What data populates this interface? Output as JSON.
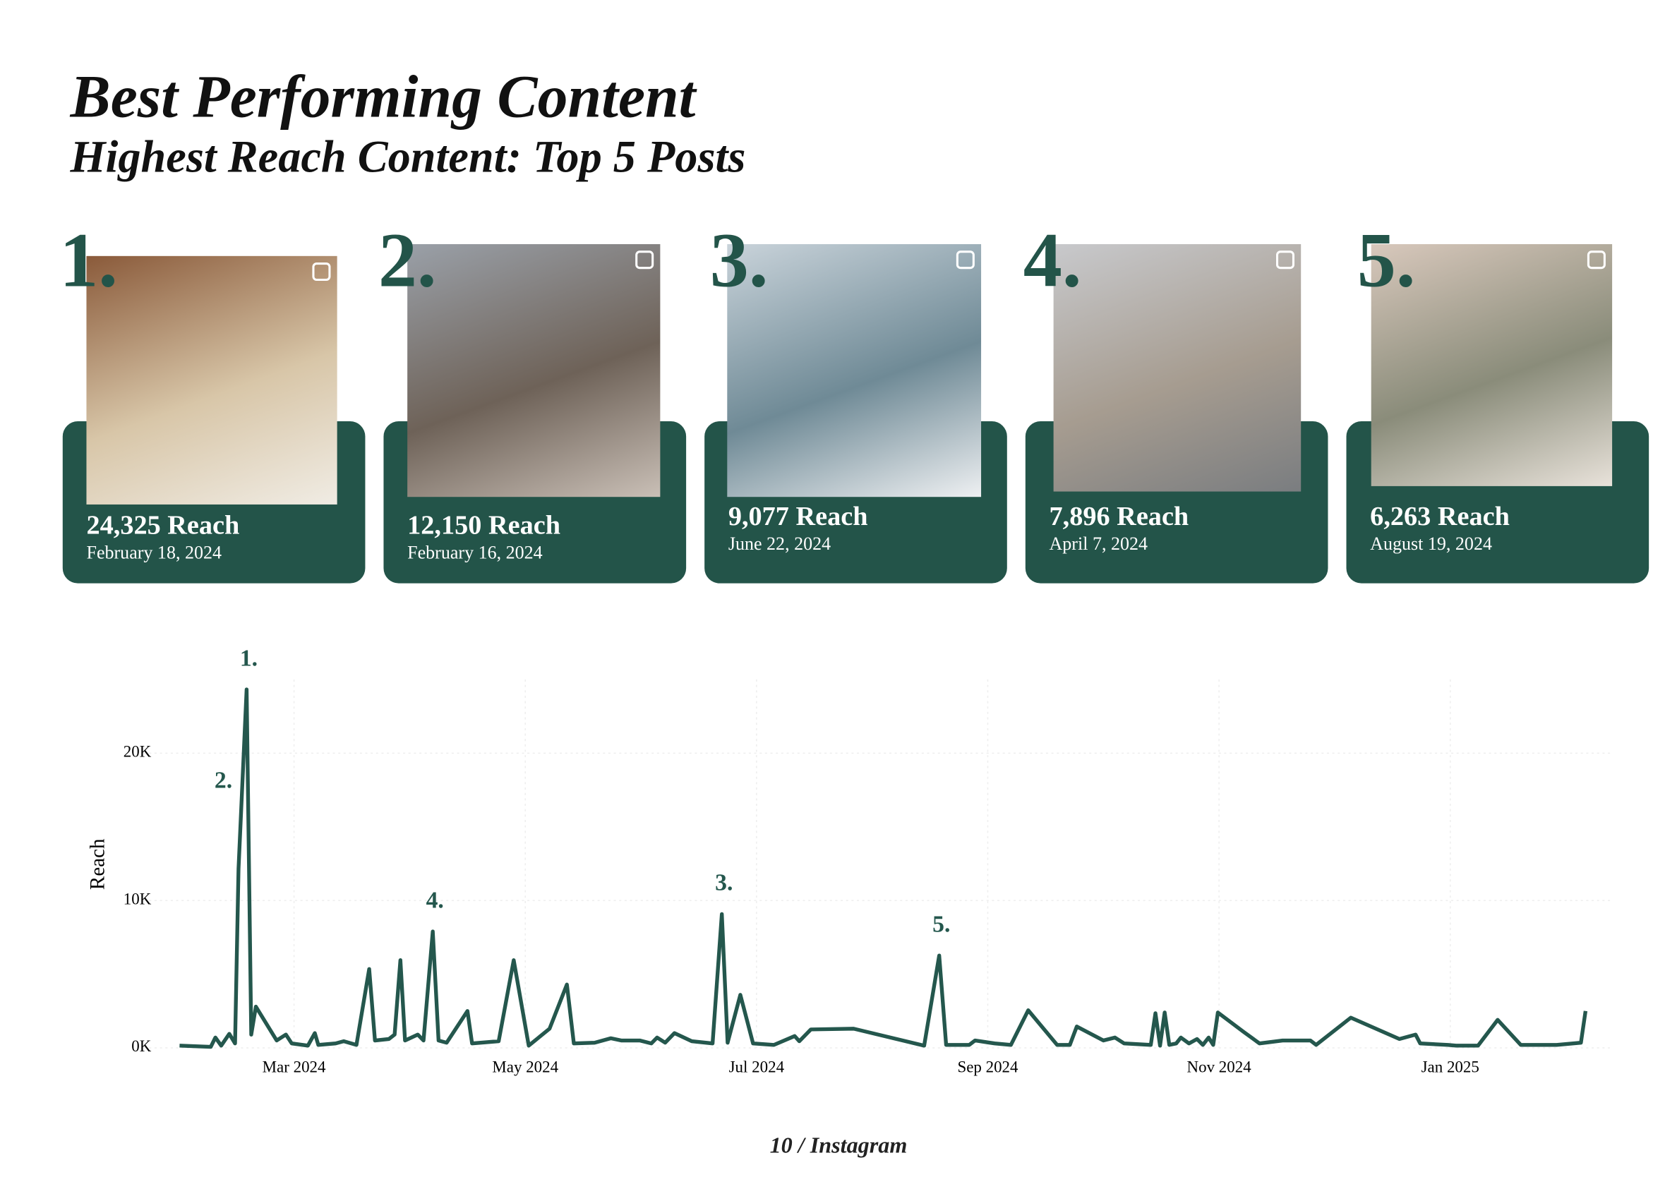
{
  "header": {
    "title": "Best Performing Content",
    "subtitle": "Highest Reach Content: Top 5 Posts"
  },
  "posts": [
    {
      "rank": "1.",
      "reach": "24,325 Reach",
      "date": "February 18, 2024"
    },
    {
      "rank": "2.",
      "reach": "12,150 Reach",
      "date": "February 16, 2024"
    },
    {
      "rank": "3.",
      "reach": "9,077 Reach",
      "date": "June 22, 2024"
    },
    {
      "rank": "4.",
      "reach": "7,896 Reach",
      "date": "April 7, 2024"
    },
    {
      "rank": "5.",
      "reach": "6,263 Reach",
      "date": "August 19, 2024"
    }
  ],
  "chart_data": {
    "type": "line",
    "y_label": "Reach",
    "color": "#24574d",
    "grid": true,
    "xlim": [
      0.7,
      13.4
    ],
    "xticks": [
      {
        "value": 2,
        "label": "Mar 2024"
      },
      {
        "value": 4,
        "label": "May 2024"
      },
      {
        "value": 6,
        "label": "Jul 2024"
      },
      {
        "value": 8,
        "label": "Sep 2024"
      },
      {
        "value": 10,
        "label": "Nov 2024"
      },
      {
        "value": 12,
        "label": "Jan 2025"
      }
    ],
    "ylim": [
      0,
      25000
    ],
    "yticks": [
      {
        "value": 0,
        "label": "0K"
      },
      {
        "value": 10000,
        "label": "10K"
      },
      {
        "value": 20000,
        "label": "20K"
      }
    ],
    "x": [
      1.01,
      1.28,
      1.32,
      1.37,
      1.44,
      1.49,
      1.52,
      1.59,
      1.63,
      1.67,
      1.85,
      1.93,
      1.98,
      2.12,
      2.18,
      2.21,
      2.36,
      2.43,
      2.54,
      2.65,
      2.7,
      2.82,
      2.87,
      2.92,
      2.96,
      3.07,
      3.12,
      3.2,
      3.25,
      3.32,
      3.5,
      3.54,
      3.77,
      3.9,
      4.03,
      4.21,
      4.36,
      4.42,
      4.6,
      4.74,
      4.83,
      4.99,
      5.09,
      5.14,
      5.21,
      5.29,
      5.44,
      5.62,
      5.7,
      5.75,
      5.86,
      5.97,
      6.15,
      6.33,
      6.37,
      6.47,
      6.84,
      7.45,
      7.58,
      7.64,
      7.84,
      7.89,
      8.06,
      8.2,
      8.35,
      8.6,
      8.71,
      8.77,
      9.0,
      9.1,
      9.18,
      9.41,
      9.45,
      9.49,
      9.53,
      9.57,
      9.63,
      9.67,
      9.74,
      9.81,
      9.86,
      9.91,
      9.95,
      9.99,
      10.21,
      10.35,
      10.55,
      10.79,
      10.84,
      11.14,
      11.56,
      11.7,
      11.74,
      11.98,
      12.05,
      12.24,
      12.41,
      12.61,
      12.92,
      13.13,
      13.17
    ],
    "values": [
      150,
      70,
      700,
      150,
      950,
      300,
      12150,
      24325,
      900,
      2800,
      500,
      900,
      300,
      150,
      1000,
      200,
      300,
      450,
      200,
      5350,
      500,
      600,
      900,
      5950,
      500,
      900,
      500,
      7896,
      500,
      350,
      2500,
      300,
      450,
      5950,
      150,
      1300,
      4300,
      300,
      350,
      650,
      500,
      500,
      300,
      700,
      350,
      1000,
      450,
      300,
      9077,
      350,
      3600,
      300,
      200,
      800,
      450,
      1250,
      1300,
      150,
      6263,
      200,
      200,
      500,
      300,
      200,
      2550,
      200,
      200,
      1450,
      500,
      700,
      300,
      200,
      2350,
      150,
      2400,
      200,
      300,
      700,
      300,
      600,
      200,
      700,
      200,
      2400,
      1100,
      300,
      500,
      500,
      200,
      2050,
      600,
      900,
      300,
      200,
      150,
      150,
      1900,
      200,
      200,
      350,
      2500
    ],
    "annotations": [
      {
        "text": "1.",
        "x": 1.59,
        "y": 24325
      },
      {
        "text": "2.",
        "x": 1.52,
        "y": 12150
      },
      {
        "text": "3.",
        "x": 5.7,
        "y": 9077
      },
      {
        "text": "4.",
        "x": 3.2,
        "y": 7896
      },
      {
        "text": "5.",
        "x": 7.58,
        "y": 6263
      }
    ]
  },
  "footer": "10 / Instagram"
}
